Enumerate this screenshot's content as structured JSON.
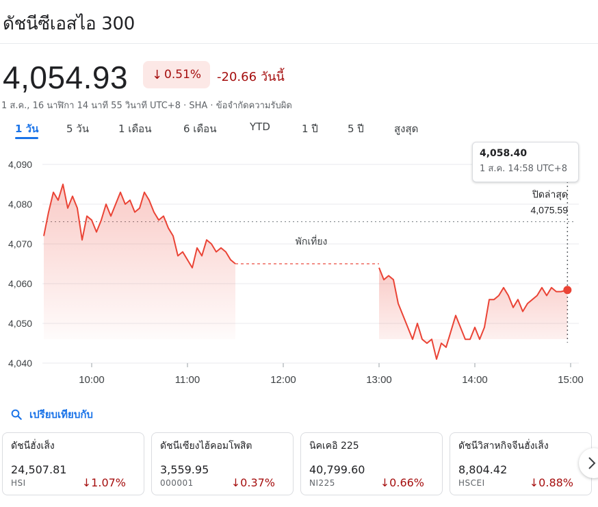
{
  "title": "ดัชนีซีเอสไอ 300",
  "price": "4,054.93",
  "change_percent": "0.51%",
  "change_abs": "-20.66",
  "change_period": "วันนี้",
  "meta": "1 ส.ค., 16 นาฬิกา 14 นาที 55 วินาที UTC+8 · SHA · ข้อจำกัดความรับผิด",
  "tabs": [
    "1 วัน",
    "5 วัน",
    "1 เดือน",
    "6 เดือน",
    "YTD",
    "1 ปี",
    "5 ปี",
    "สูงสุด"
  ],
  "active_tab": "1 วัน",
  "tooltip": {
    "value": "4,058.40",
    "time": "1 ส.ค. 14:58 UTC+8"
  },
  "prev_close": {
    "label": "ปิดล่าสุด",
    "value": "4,075.59"
  },
  "lunch_label": "พักเที่ยง",
  "colors": {
    "down": "#ea4335",
    "down_text": "#a50e0e",
    "accent": "#1a73e8"
  },
  "chart_data": {
    "type": "area",
    "ylim": [
      4040,
      4090
    ],
    "yticks": [
      "4,090",
      "4,080",
      "4,070",
      "4,060",
      "4,050",
      "4,040"
    ],
    "ytick_values": [
      4090,
      4080,
      4070,
      4060,
      4050,
      4040
    ],
    "xticks": [
      "10:00",
      "11:00",
      "12:00",
      "13:00",
      "14:00",
      "15:00"
    ],
    "xtick_values": [
      "10:00",
      "11:00",
      "12:00",
      "13:00",
      "14:00",
      "15:00"
    ],
    "xlim": [
      "09:30",
      "15:00"
    ],
    "previous_close": 4075.59,
    "lunch_break": [
      "11:30",
      "13:00"
    ],
    "series": [
      {
        "values": [
          [
            "09:30",
            4072
          ],
          [
            "09:33",
            4078
          ],
          [
            "09:36",
            4083
          ],
          [
            "09:39",
            4081
          ],
          [
            "09:42",
            4085
          ],
          [
            "09:45",
            4079
          ],
          [
            "09:48",
            4082
          ],
          [
            "09:51",
            4079
          ],
          [
            "09:54",
            4071
          ],
          [
            "09:57",
            4077
          ],
          [
            "10:00",
            4076
          ],
          [
            "10:03",
            4073
          ],
          [
            "10:06",
            4076
          ],
          [
            "10:09",
            4080
          ],
          [
            "10:12",
            4077
          ],
          [
            "10:15",
            4080
          ],
          [
            "10:18",
            4083
          ],
          [
            "10:21",
            4080
          ],
          [
            "10:24",
            4081
          ],
          [
            "10:27",
            4078
          ],
          [
            "10:30",
            4079
          ],
          [
            "10:33",
            4083
          ],
          [
            "10:36",
            4081
          ],
          [
            "10:39",
            4078
          ],
          [
            "10:42",
            4076
          ],
          [
            "10:45",
            4077
          ],
          [
            "10:48",
            4074
          ],
          [
            "10:51",
            4072
          ],
          [
            "10:54",
            4067
          ],
          [
            "10:57",
            4068
          ],
          [
            "11:00",
            4066
          ],
          [
            "11:03",
            4064
          ],
          [
            "11:06",
            4069
          ],
          [
            "11:09",
            4067
          ],
          [
            "11:12",
            4071
          ],
          [
            "11:15",
            4070
          ],
          [
            "11:18",
            4068
          ],
          [
            "11:21",
            4069
          ],
          [
            "11:24",
            4068
          ],
          [
            "11:27",
            4066
          ],
          [
            "11:30",
            4065
          ],
          [
            "13:00",
            4064
          ],
          [
            "13:03",
            4061
          ],
          [
            "13:06",
            4062
          ],
          [
            "13:09",
            4061
          ],
          [
            "13:12",
            4055
          ],
          [
            "13:15",
            4052
          ],
          [
            "13:18",
            4049
          ],
          [
            "13:21",
            4046
          ],
          [
            "13:24",
            4050
          ],
          [
            "13:27",
            4046
          ],
          [
            "13:30",
            4045
          ],
          [
            "13:33",
            4046
          ],
          [
            "13:36",
            4041
          ],
          [
            "13:39",
            4045
          ],
          [
            "13:42",
            4044
          ],
          [
            "13:45",
            4048
          ],
          [
            "13:48",
            4052
          ],
          [
            "13:51",
            4049
          ],
          [
            "13:54",
            4046
          ],
          [
            "13:57",
            4046
          ],
          [
            "14:00",
            4049
          ],
          [
            "14:03",
            4046
          ],
          [
            "14:06",
            4049
          ],
          [
            "14:09",
            4056
          ],
          [
            "14:12",
            4056
          ],
          [
            "14:15",
            4057
          ],
          [
            "14:18",
            4059
          ],
          [
            "14:21",
            4057
          ],
          [
            "14:24",
            4054
          ],
          [
            "14:27",
            4056
          ],
          [
            "14:30",
            4053
          ],
          [
            "14:33",
            4055
          ],
          [
            "14:36",
            4056
          ],
          [
            "14:39",
            4057
          ],
          [
            "14:42",
            4059
          ],
          [
            "14:45",
            4057
          ],
          [
            "14:48",
            4059
          ],
          [
            "14:51",
            4058
          ],
          [
            "14:54",
            4058
          ],
          [
            "14:58",
            4058.4
          ]
        ]
      }
    ]
  },
  "compare": {
    "label": "เปรียบเทียบกับ",
    "icon": "search-icon"
  },
  "cards": [
    {
      "name": "ดัชนีฮั่งเส็ง",
      "value": "24,507.81",
      "ticker": "HSI",
      "change": "1.07%"
    },
    {
      "name": "ดัชนีเซียงไฮ้คอมโพสิต",
      "value": "3,559.95",
      "ticker": "000001",
      "change": "0.37%"
    },
    {
      "name": "นิคเคอิ 225",
      "value": "40,799.60",
      "ticker": "NI225",
      "change": "0.66%"
    },
    {
      "name": "ดัชนีวิสาหกิจจีนฮั่งเส็ง",
      "value": "8,804.42",
      "ticker": "HSCEI",
      "change": "0.88%"
    }
  ],
  "down_arrow": "↓",
  "next_icon": "chevron-right-icon"
}
